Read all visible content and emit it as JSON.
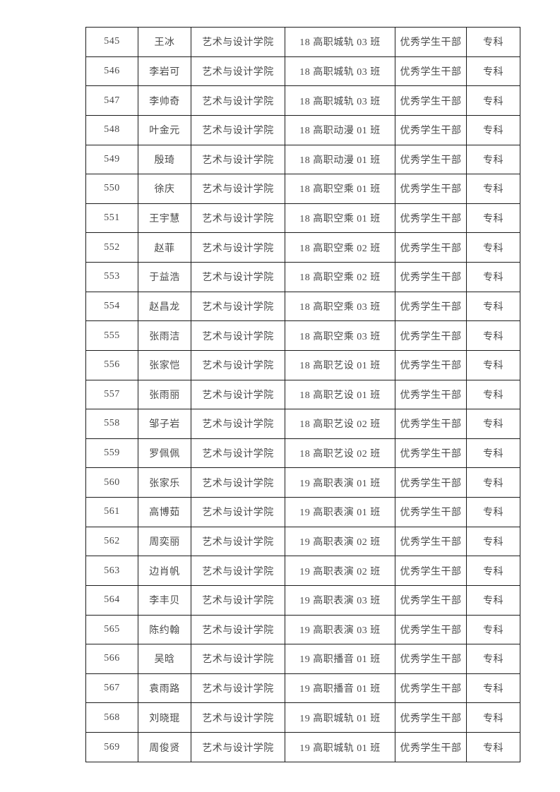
{
  "table": {
    "columns": [
      "no",
      "name",
      "college",
      "class_name",
      "award",
      "level"
    ],
    "rows": [
      [
        "545",
        "王冰",
        "艺术与设计学院",
        "18 高职城轨 03 班",
        "优秀学生干部",
        "专科"
      ],
      [
        "546",
        "李岩可",
        "艺术与设计学院",
        "18 高职城轨 03 班",
        "优秀学生干部",
        "专科"
      ],
      [
        "547",
        "李帅奇",
        "艺术与设计学院",
        "18 高职城轨 03 班",
        "优秀学生干部",
        "专科"
      ],
      [
        "548",
        "叶金元",
        "艺术与设计学院",
        "18 高职动漫 01 班",
        "优秀学生干部",
        "专科"
      ],
      [
        "549",
        "殷琦",
        "艺术与设计学院",
        "18 高职动漫 01 班",
        "优秀学生干部",
        "专科"
      ],
      [
        "550",
        "徐庆",
        "艺术与设计学院",
        "18 高职空乘 01 班",
        "优秀学生干部",
        "专科"
      ],
      [
        "551",
        "王宇慧",
        "艺术与设计学院",
        "18 高职空乘 01 班",
        "优秀学生干部",
        "专科"
      ],
      [
        "552",
        "赵菲",
        "艺术与设计学院",
        "18 高职空乘 02 班",
        "优秀学生干部",
        "专科"
      ],
      [
        "553",
        "于益浩",
        "艺术与设计学院",
        "18 高职空乘 02 班",
        "优秀学生干部",
        "专科"
      ],
      [
        "554",
        "赵昌龙",
        "艺术与设计学院",
        "18 高职空乘 03 班",
        "优秀学生干部",
        "专科"
      ],
      [
        "555",
        "张雨洁",
        "艺术与设计学院",
        "18 高职空乘 03 班",
        "优秀学生干部",
        "专科"
      ],
      [
        "556",
        "张家恺",
        "艺术与设计学院",
        "18 高职艺设 01 班",
        "优秀学生干部",
        "专科"
      ],
      [
        "557",
        "张雨丽",
        "艺术与设计学院",
        "18 高职艺设 01 班",
        "优秀学生干部",
        "专科"
      ],
      [
        "558",
        "邹子岩",
        "艺术与设计学院",
        "18 高职艺设 02 班",
        "优秀学生干部",
        "专科"
      ],
      [
        "559",
        "罗佩佩",
        "艺术与设计学院",
        "18 高职艺设 02 班",
        "优秀学生干部",
        "专科"
      ],
      [
        "560",
        "张家乐",
        "艺术与设计学院",
        "19 高职表演 01 班",
        "优秀学生干部",
        "专科"
      ],
      [
        "561",
        "高博茹",
        "艺术与设计学院",
        "19 高职表演 01 班",
        "优秀学生干部",
        "专科"
      ],
      [
        "562",
        "周奕丽",
        "艺术与设计学院",
        "19 高职表演 02 班",
        "优秀学生干部",
        "专科"
      ],
      [
        "563",
        "边肖帆",
        "艺术与设计学院",
        "19 高职表演 02 班",
        "优秀学生干部",
        "专科"
      ],
      [
        "564",
        "李丰贝",
        "艺术与设计学院",
        "19 高职表演 03 班",
        "优秀学生干部",
        "专科"
      ],
      [
        "565",
        "陈约翰",
        "艺术与设计学院",
        "19 高职表演 03 班",
        "优秀学生干部",
        "专科"
      ],
      [
        "566",
        "吴晗",
        "艺术与设计学院",
        "19 高职播音 01 班",
        "优秀学生干部",
        "专科"
      ],
      [
        "567",
        "袁雨路",
        "艺术与设计学院",
        "19 高职播音 01 班",
        "优秀学生干部",
        "专科"
      ],
      [
        "568",
        "刘晓琨",
        "艺术与设计学院",
        "19 高职城轨 01 班",
        "优秀学生干部",
        "专科"
      ],
      [
        "569",
        "周俊贤",
        "艺术与设计学院",
        "19 高职城轨 01 班",
        "优秀学生干部",
        "专科"
      ]
    ]
  }
}
